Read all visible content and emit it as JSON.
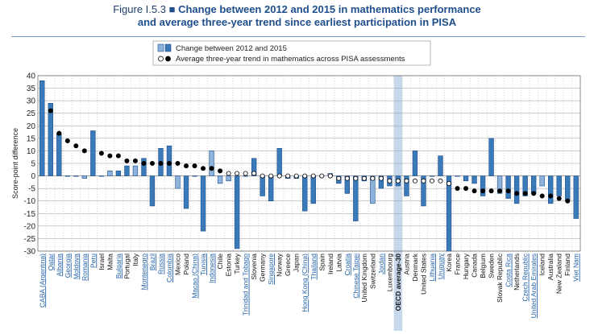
{
  "figure": {
    "label": "Figure I.5.3",
    "separator": "■",
    "title_line1": "Change between 2012 and 2015 in mathematics performance",
    "title_line2": "and average three-year trend since earliest participation in PISA"
  },
  "colors": {
    "bar_blue": "#3a7ab8",
    "bar_blue_light": "#8db3dc",
    "bar_dark": "#1f4e8c",
    "dot_black": "#000000",
    "grid": "#999999",
    "highlight": "#c7d8ec",
    "title": "#1f4e8c"
  },
  "chart_data": {
    "type": "bar",
    "ylabel": "Score-point difference",
    "ylim": [
      -30,
      40
    ],
    "yticks": [
      40,
      35,
      30,
      25,
      20,
      15,
      10,
      5,
      0,
      -5,
      -10,
      -15,
      -20,
      -25,
      -30
    ],
    "grid": true,
    "legend_position": "top-center",
    "legend": [
      {
        "marker": "bar",
        "label": "Change between 2012 and 2015"
      },
      {
        "marker": "dot",
        "label": "Average three-year trend in mathematics across PISA assessments"
      }
    ],
    "highlight_category": "OECD average-30",
    "categories": [
      "CABA (Argentina)",
      "Qatar",
      "Albania",
      "Georgia",
      "Moldova",
      "Romania",
      "Peru",
      "Israel",
      "Malta",
      "Bulgaria",
      "Portugal",
      "Italy",
      "Montenegro",
      "Brazil",
      "Russia",
      "Colombia",
      "Mexico",
      "Poland",
      "Macao (China)",
      "Tunisia",
      "Indonesia",
      "Chile",
      "Estonia",
      "Turkey",
      "Trinidad and Tobago",
      "Slovenia",
      "Germany",
      "Singapore",
      "Norway",
      "Greece",
      "Japan",
      "Hong Kong (China)",
      "Thailand",
      "Spain",
      "Ireland",
      "Latvia",
      "Croatia",
      "Chinese Taipei",
      "United Kingdom",
      "Switzerland",
      "Jordan",
      "Luxembourg",
      "OECD average-30",
      "Austria",
      "Denmark",
      "United States",
      "Lithuania",
      "Uruguay",
      "Korea",
      "France",
      "Hungary",
      "Canada",
      "Belgium",
      "Sweden",
      "Slovak Republic",
      "Costa Rica",
      "Netherlands",
      "Czech Republic",
      "United Arab Emirates",
      "Iceland",
      "Australia",
      "New Zealand",
      "Finland",
      "Viet Nam"
    ],
    "category_link": [
      true,
      true,
      true,
      true,
      true,
      true,
      true,
      false,
      false,
      true,
      false,
      false,
      true,
      true,
      true,
      true,
      false,
      false,
      true,
      true,
      true,
      false,
      false,
      false,
      true,
      false,
      false,
      true,
      false,
      false,
      false,
      true,
      true,
      false,
      false,
      false,
      true,
      true,
      false,
      false,
      true,
      false,
      false,
      false,
      false,
      false,
      true,
      true,
      false,
      false,
      false,
      false,
      false,
      false,
      false,
      true,
      false,
      true,
      true,
      false,
      false,
      false,
      false,
      true
    ],
    "series": [
      {
        "name": "Change between 2012 and 2015",
        "marker": "bar",
        "values": [
          38,
          29,
          17,
          0,
          0,
          -1,
          18,
          0,
          2,
          2,
          4,
          4,
          7,
          -12,
          11,
          12,
          -5,
          -13,
          0,
          -22,
          10,
          -3,
          -2,
          -29,
          0,
          7,
          -8,
          -10,
          11,
          -1,
          -1,
          -14,
          -11,
          0,
          1,
          -3,
          -7,
          -18,
          -2,
          -11,
          -5,
          -4,
          -4,
          -8,
          10,
          -12,
          0,
          8,
          -30,
          0,
          -2,
          -3,
          -8,
          15,
          -7,
          -9,
          -11,
          -8,
          -7,
          -4,
          -11,
          -8,
          -10,
          -17
        ],
        "filled": [
          true,
          true,
          true,
          false,
          false,
          false,
          true,
          false,
          false,
          true,
          true,
          false,
          true,
          true,
          true,
          true,
          false,
          true,
          true,
          true,
          false,
          false,
          false,
          true,
          true,
          true,
          true,
          true,
          true,
          true,
          true,
          true,
          true,
          true,
          false,
          true,
          true,
          true,
          true,
          false,
          true,
          true,
          true,
          true,
          true,
          true,
          true,
          true,
          true,
          false,
          true,
          true,
          true,
          true,
          false,
          true,
          true,
          true,
          true,
          false,
          true,
          true,
          true,
          true
        ]
      },
      {
        "name": "Average three-year trend in mathematics across PISA assessments",
        "marker": "dot",
        "values": [
          null,
          26,
          17,
          14,
          12,
          10,
          null,
          9,
          8,
          8,
          6,
          6,
          5,
          5,
          5,
          5,
          5,
          4,
          4,
          3,
          3,
          2,
          1,
          1,
          1,
          1,
          0,
          0,
          0,
          0,
          0,
          0,
          0,
          0,
          0,
          -1,
          -1,
          -1,
          -1,
          -1,
          -1,
          -2,
          -2,
          -2,
          -2,
          -2,
          -2,
          -2,
          -3,
          -5,
          -5,
          -6,
          -6,
          -6,
          -6,
          -6,
          -7,
          -7,
          -7,
          -8,
          -8,
          -9,
          -10,
          null
        ],
        "filled": [
          true,
          true,
          true,
          true,
          true,
          true,
          true,
          true,
          true,
          true,
          true,
          true,
          true,
          true,
          true,
          true,
          true,
          true,
          true,
          true,
          true,
          true,
          false,
          false,
          false,
          false,
          false,
          false,
          false,
          false,
          false,
          false,
          false,
          false,
          false,
          false,
          false,
          false,
          false,
          false,
          false,
          false,
          false,
          false,
          false,
          false,
          false,
          false,
          false,
          true,
          true,
          true,
          true,
          true,
          true,
          true,
          true,
          true,
          true,
          true,
          true,
          true,
          true,
          true
        ]
      }
    ]
  }
}
